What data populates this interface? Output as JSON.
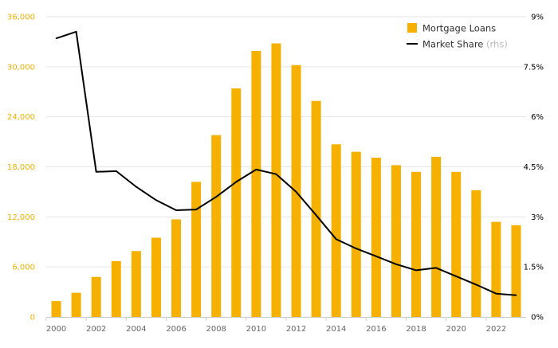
{
  "chart_data": {
    "type": "bar",
    "categories": [
      "2000",
      "2001",
      "2002",
      "2003",
      "2004",
      "2005",
      "2006",
      "2007",
      "2008",
      "2009",
      "2010",
      "2011",
      "2012",
      "2013",
      "2014",
      "2015",
      "2016",
      "2017",
      "2018",
      "2019",
      "2020",
      "2021",
      "2022",
      "2023"
    ],
    "series": [
      {
        "name": "Mortgage Loans",
        "type": "bar",
        "axis": "left",
        "color": "#f5b000",
        "values": [
          1900,
          2900,
          4800,
          6700,
          7900,
          9500,
          11700,
          16200,
          21800,
          27400,
          31900,
          32800,
          30200,
          25900,
          20700,
          19800,
          19100,
          18200,
          17400,
          19200,
          17400,
          15200,
          11400,
          11000
        ]
      },
      {
        "name": "Market Share",
        "suffix": " (rhs)",
        "type": "line",
        "axis": "right",
        "color": "#000000",
        "values": [
          8.35,
          8.55,
          4.35,
          4.37,
          3.9,
          3.5,
          3.2,
          3.22,
          3.6,
          4.05,
          4.42,
          4.28,
          3.75,
          3.05,
          2.33,
          2.05,
          1.82,
          1.58,
          1.4,
          1.47,
          1.22,
          0.97,
          0.7,
          0.65
        ]
      }
    ],
    "y_left": {
      "ylim": [
        0,
        36000
      ],
      "ticks": [
        0,
        6000,
        12000,
        18000,
        24000,
        30000,
        36000
      ],
      "tick_labels": [
        "0",
        "6,000",
        "12,000",
        "18,000",
        "24,000",
        "30,000",
        "36,000"
      ],
      "tick_color": "#f5b000"
    },
    "y_right": {
      "ylim": [
        0,
        9
      ],
      "ticks": [
        0,
        1.5,
        3,
        4.5,
        6,
        7.5,
        9
      ],
      "tick_labels": [
        "0%",
        "1.5%",
        "3%",
        "4.5%",
        "6%",
        "7.5%",
        "9%"
      ]
    },
    "x_tick_labels": [
      "2000",
      "2002",
      "2004",
      "2006",
      "2008",
      "2010",
      "2012",
      "2014",
      "2016",
      "2018",
      "2020",
      "2022"
    ],
    "title": "",
    "xlabel": "",
    "ylabel": "",
    "grid": true,
    "legend_position": "top-right",
    "colors": {
      "grid": "#e6e6e6",
      "axis": "#cccccc",
      "tick_text": "#666666",
      "legend_suffix": "#bbbbbb"
    }
  }
}
